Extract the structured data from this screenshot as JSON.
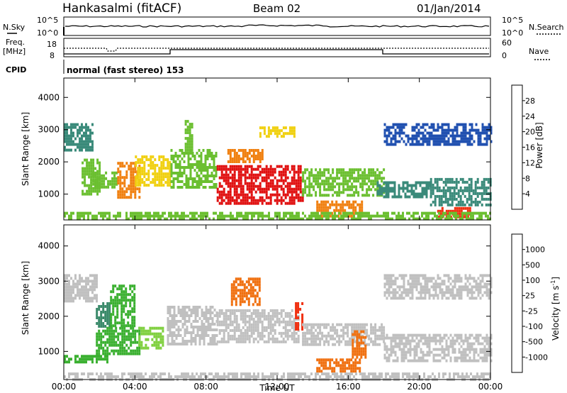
{
  "header": {
    "station": "Hankasalmi (fitACF)",
    "beam": "Beam 02",
    "date": "01/Jan/2014"
  },
  "noise_panel": {
    "left_label": "N.Sky",
    "right_label": "N.Search",
    "left_ticks": [
      "10^5",
      "10^0"
    ],
    "right_ticks": [
      "10^5",
      "10^0"
    ]
  },
  "freq_panel": {
    "left_label_line1": "Freq.",
    "left_label_line2": "[MHz]",
    "left_ticks": [
      "18",
      "8"
    ],
    "right_label": "Nave",
    "right_ticks": [
      "60",
      "0"
    ]
  },
  "cpid_panel": {
    "label": "CPID",
    "mode": "normal (fast stereo) 153"
  },
  "chart_data": [
    {
      "type": "heatmap",
      "title": "",
      "xlabel": "",
      "ylabel": "Slant Range [km]",
      "x_ticks": [
        "00:00",
        "04:00",
        "08:00",
        "12:00",
        "16:00",
        "20:00",
        "00:00"
      ],
      "y_ticks": [
        1000,
        2000,
        3000,
        4000
      ],
      "ylim": [
        200,
        4600
      ],
      "colorbar": {
        "label": "Power [dB]",
        "ticks": [
          4,
          8,
          12,
          16,
          20,
          24,
          28
        ],
        "colors": [
          "#1010f0",
          "#2050b0",
          "#3a8a7a",
          "#6bbf30",
          "#f0d010",
          "#f08010",
          "#f03010",
          "#e01010"
        ]
      },
      "regions": [
        {
          "t": [
            0.0,
            1.6
          ],
          "r": [
            2400,
            3200
          ],
          "level": 8
        },
        {
          "t": [
            1.0,
            2.0
          ],
          "r": [
            1000,
            2100
          ],
          "level": 12
        },
        {
          "t": [
            1.6,
            3.0
          ],
          "r": [
            1200,
            1700
          ],
          "level": 14
        },
        {
          "t": [
            3.0,
            4.2
          ],
          "r": [
            900,
            2000
          ],
          "level": 20
        },
        {
          "t": [
            4.0,
            6.0
          ],
          "r": [
            1300,
            2200
          ],
          "level": 16
        },
        {
          "t": [
            6.0,
            8.6
          ],
          "r": [
            1200,
            2400
          ],
          "level": 12
        },
        {
          "t": [
            6.8,
            7.2
          ],
          "r": [
            2300,
            3300
          ],
          "level": 12
        },
        {
          "t": [
            8.6,
            13.4
          ],
          "r": [
            700,
            1900
          ],
          "level": 28
        },
        {
          "t": [
            9.2,
            11.2
          ],
          "r": [
            2000,
            2400
          ],
          "level": 22
        },
        {
          "t": [
            11.0,
            13.0
          ],
          "r": [
            2800,
            3100
          ],
          "level": 16
        },
        {
          "t": [
            13.4,
            18.0
          ],
          "r": [
            1000,
            1800
          ],
          "level": 14
        },
        {
          "t": [
            14.2,
            16.8
          ],
          "r": [
            300,
            800
          ],
          "level": 22
        },
        {
          "t": [
            17.6,
            20.6
          ],
          "r": [
            900,
            1400
          ],
          "level": 10
        },
        {
          "t": [
            18.0,
            24.0
          ],
          "r": [
            2500,
            3200
          ],
          "level": 6
        },
        {
          "t": [
            20.6,
            24.0
          ],
          "r": [
            700,
            1500
          ],
          "level": 10
        },
        {
          "t": [
            21.0,
            22.8
          ],
          "r": [
            300,
            600
          ],
          "level": 26
        },
        {
          "t": [
            0.0,
            24.0
          ],
          "r": [
            200,
            450
          ],
          "level": 12
        }
      ]
    },
    {
      "type": "heatmap",
      "title": "",
      "xlabel": "Time UT",
      "ylabel": "Slant Range [km]",
      "x_ticks": [
        "00:00",
        "04:00",
        "08:00",
        "12:00",
        "16:00",
        "20:00",
        "00:00"
      ],
      "y_ticks": [
        1000,
        2000,
        3000,
        4000
      ],
      "ylim": [
        200,
        4600
      ],
      "colorbar": {
        "label": "Velocity [m s",
        "label_sup": "-1",
        "label_close": "]",
        "ticks": [
          1000,
          500,
          100,
          25,
          -25,
          -100,
          -500,
          -1000
        ],
        "colors": [
          "#2050b0",
          "#3a8a6a",
          "#3ab030",
          "#80d040",
          "#c0c0c0",
          "#f0a020",
          "#f07010",
          "#f03010",
          "#e01010"
        ]
      },
      "regions": [
        {
          "t": [
            0.0,
            1.8
          ],
          "r": [
            2400,
            3200
          ],
          "value": 0
        },
        {
          "t": [
            1.8,
            2.6
          ],
          "r": [
            1700,
            2400
          ],
          "value": 700
        },
        {
          "t": [
            1.8,
            4.2
          ],
          "r": [
            900,
            1700
          ],
          "value": 150
        },
        {
          "t": [
            2.6,
            4.0
          ],
          "r": [
            1700,
            2900
          ],
          "value": 300
        },
        {
          "t": [
            4.2,
            5.6
          ],
          "r": [
            1100,
            1700
          ],
          "value": 80
        },
        {
          "t": [
            5.8,
            8.6
          ],
          "r": [
            1200,
            2300
          ],
          "value": 0
        },
        {
          "t": [
            8.6,
            13.2
          ],
          "r": [
            1300,
            2200
          ],
          "value": 0
        },
        {
          "t": [
            9.4,
            11.0
          ],
          "r": [
            2300,
            3100
          ],
          "value": -150
        },
        {
          "t": [
            13.0,
            13.4
          ],
          "r": [
            1600,
            2400
          ],
          "value": -700
        },
        {
          "t": [
            13.4,
            18.0
          ],
          "r": [
            1200,
            1800
          ],
          "value": 0
        },
        {
          "t": [
            14.2,
            16.6
          ],
          "r": [
            400,
            800
          ],
          "value": -200
        },
        {
          "t": [
            16.2,
            17.0
          ],
          "r": [
            800,
            1600
          ],
          "value": -300
        },
        {
          "t": [
            18.0,
            24.0
          ],
          "r": [
            2500,
            3200
          ],
          "value": 0
        },
        {
          "t": [
            18.0,
            24.0
          ],
          "r": [
            700,
            1500
          ],
          "value": 0
        },
        {
          "t": [
            0.0,
            2.4
          ],
          "r": [
            700,
            900
          ],
          "value": 120
        },
        {
          "t": [
            0.0,
            24.0
          ],
          "r": [
            200,
            400
          ],
          "value": 0
        }
      ]
    }
  ]
}
